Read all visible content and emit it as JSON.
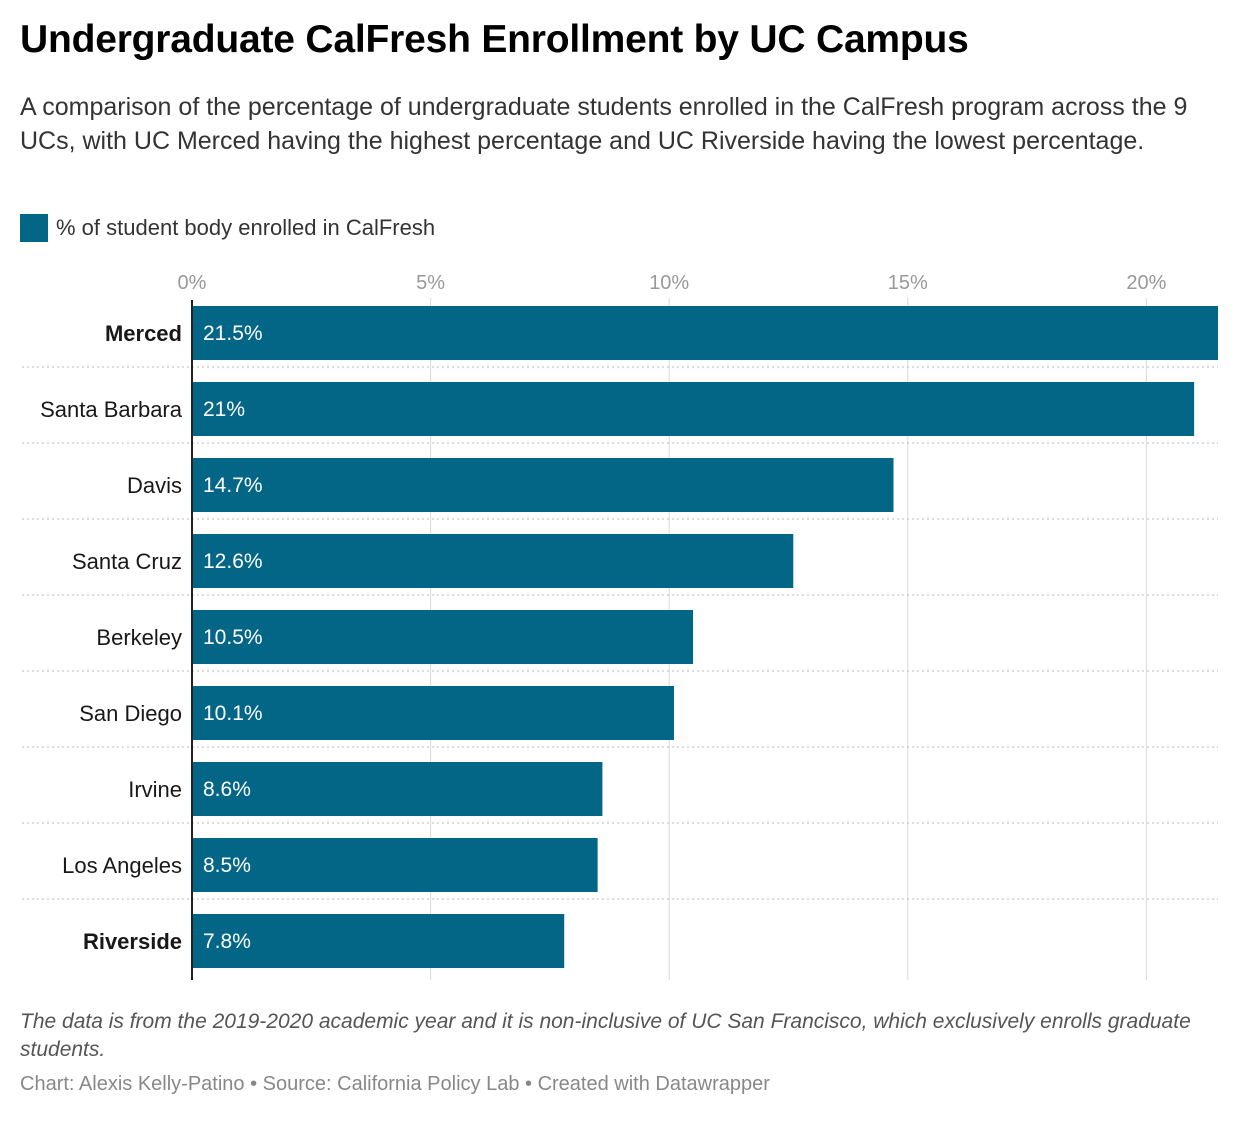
{
  "header": {
    "title": "Undergraduate CalFresh Enrollment by UC Campus",
    "subtitle": "A comparison of the percentage of undergraduate students enrolled in the CalFresh program across the 9 UCs, with UC Merced having the highest percentage and UC Riverside having the lowest percentage."
  },
  "legend": {
    "label": "% of student body enrolled in CalFresh",
    "color": "#036687"
  },
  "footer": {
    "notes": "The data is from the 2019-2020 academic year and it is non-inclusive of UC San Francisco, which exclusively enrolls graduate students.",
    "byline": "Chart: Alexis Kelly-Patino • Source: California Policy Lab • Created with Datawrapper"
  },
  "colors": {
    "bar": "#036687",
    "grid": "#d9d9d9",
    "axis_text": "#999999",
    "label_text": "#181818",
    "value_text": "#ffffff"
  },
  "chart_data": {
    "type": "bar",
    "orientation": "horizontal",
    "categories": [
      "Merced",
      "Santa Barbara",
      "Davis",
      "Santa Cruz",
      "Berkeley",
      "San Diego",
      "Irvine",
      "Los Angeles",
      "Riverside"
    ],
    "bold_categories": [
      "Merced",
      "Riverside"
    ],
    "series": [
      {
        "name": "% of student body enrolled in CalFresh",
        "values": [
          21.5,
          21,
          14.7,
          12.6,
          10.5,
          10.1,
          8.6,
          8.5,
          7.8
        ],
        "value_labels": [
          "21.5%",
          "21%",
          "14.7%",
          "12.6%",
          "10.5%",
          "10.1%",
          "8.6%",
          "8.5%",
          "7.8%"
        ]
      }
    ],
    "x_ticks": [
      0,
      5,
      10,
      15,
      20
    ],
    "x_tick_labels": [
      "0%",
      "5%",
      "10%",
      "15%",
      "20%"
    ],
    "xlim": [
      0,
      21.5
    ],
    "tick_position": "top",
    "grid": true,
    "legend_position": "top-left"
  }
}
